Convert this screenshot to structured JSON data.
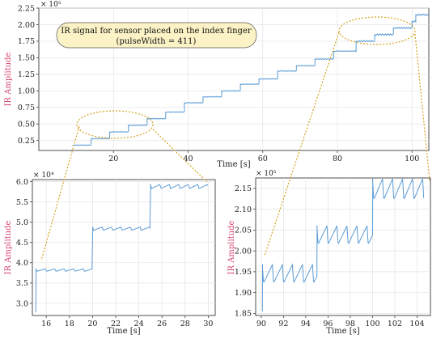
{
  "annotation": {
    "line1": "IR signal for sensor placed on the index finger",
    "line2": "(pulseWidth = 411)"
  },
  "colors": {
    "signal": "#5b9bd5",
    "ylabel": "#d9486e",
    "callout": "#d6a21e",
    "annotation_fill": "#fbf3c6",
    "grid": "#e3e3e3"
  },
  "chart_data": [
    {
      "id": "main",
      "type": "line",
      "title": "",
      "xlabel": "Time [s]",
      "ylabel": "IR Amplitude",
      "y_scale_note": "× 10⁵",
      "xlim": [
        0,
        104.5
      ],
      "ylim": [
        0.1,
        2.25
      ],
      "xticks": [
        20,
        40,
        60,
        80,
        100
      ],
      "yticks": [
        0.25,
        0.5,
        0.75,
        1.0,
        1.25,
        1.5,
        1.75,
        2.0,
        2.25
      ],
      "ytick_decimals": 2,
      "grid": true,
      "ripple": 0.01,
      "steps": [
        {
          "t0": 9,
          "t1": 14,
          "level": 0.18
        },
        {
          "t0": 14,
          "t1": 19,
          "level": 0.28
        },
        {
          "t0": 19,
          "t1": 24,
          "level": 0.38
        },
        {
          "t0": 24,
          "t1": 29,
          "level": 0.48
        },
        {
          "t0": 29,
          "t1": 34,
          "level": 0.58
        },
        {
          "t0": 34,
          "t1": 39,
          "level": 0.68
        },
        {
          "t0": 39,
          "t1": 44,
          "level": 0.82
        },
        {
          "t0": 44,
          "t1": 49,
          "level": 0.91
        },
        {
          "t0": 49,
          "t1": 54,
          "level": 1.0
        },
        {
          "t0": 54,
          "t1": 59,
          "level": 1.1
        },
        {
          "t0": 59,
          "t1": 64,
          "level": 1.18
        },
        {
          "t0": 64,
          "t1": 69,
          "level": 1.3
        },
        {
          "t0": 69,
          "t1": 74,
          "level": 1.38
        },
        {
          "t0": 74,
          "t1": 79,
          "level": 1.48
        },
        {
          "t0": 79,
          "t1": 85,
          "level": 1.6
        },
        {
          "t0": 85,
          "t1": 90,
          "level": 1.75
        },
        {
          "t0": 90,
          "t1": 95,
          "level": 1.85
        },
        {
          "t0": 95,
          "t1": 100,
          "level": 1.95
        },
        {
          "t0": 100,
          "t1": 101,
          "level": 2.05
        },
        {
          "t0": 101,
          "t1": 104.5,
          "level": 2.15
        }
      ]
    },
    {
      "id": "zoom-left",
      "type": "line",
      "title": "",
      "xlabel": "Time [s]",
      "ylabel": "IR Amplitude",
      "y_scale_note": "× 10⁴",
      "xlim": [
        14.8,
        30.6
      ],
      "ylim": [
        2.7,
        6.05
      ],
      "xticks": [
        16,
        18,
        20,
        22,
        24,
        26,
        28,
        30
      ],
      "yticks": [
        3.0,
        3.5,
        4.0,
        4.5,
        5.0,
        5.5,
        6.0
      ],
      "ytick_decimals": 1,
      "grid": true,
      "start": {
        "t": 15.1,
        "value": 2.78
      },
      "beat_period": 0.82,
      "steps": [
        {
          "t0": 15.1,
          "t1": 20.0,
          "level": 3.82,
          "ripple": 0.03
        },
        {
          "t0": 20.0,
          "t1": 25.0,
          "level": 4.84,
          "ripple": 0.04
        },
        {
          "t0": 25.0,
          "t1": 30.0,
          "level": 5.88,
          "ripple": 0.05
        }
      ]
    },
    {
      "id": "zoom-right",
      "type": "line",
      "title": "",
      "xlabel": "Time [s]",
      "ylabel": "IR Amplitude",
      "y_scale_note": "× 10⁵",
      "xlim": [
        89.5,
        105.2
      ],
      "ylim": [
        1.845,
        2.175
      ],
      "xticks": [
        90,
        92,
        94,
        96,
        98,
        100,
        102,
        104
      ],
      "yticks": [
        1.85,
        1.9,
        1.95,
        2.0,
        2.05,
        2.1,
        2.15
      ],
      "ytick_decimals": 2,
      "grid": true,
      "start": {
        "t": 90.1,
        "value": 1.855
      },
      "beat_period": 0.9,
      "steps": [
        {
          "t0": 90.1,
          "t1": 95.0,
          "level": 1.945,
          "ripple": 0.022
        },
        {
          "t0": 95.0,
          "t1": 100.0,
          "level": 2.038,
          "ripple": 0.022
        },
        {
          "t0": 100.0,
          "t1": 104.6,
          "level": 2.148,
          "ripple": 0.025
        }
      ]
    }
  ]
}
